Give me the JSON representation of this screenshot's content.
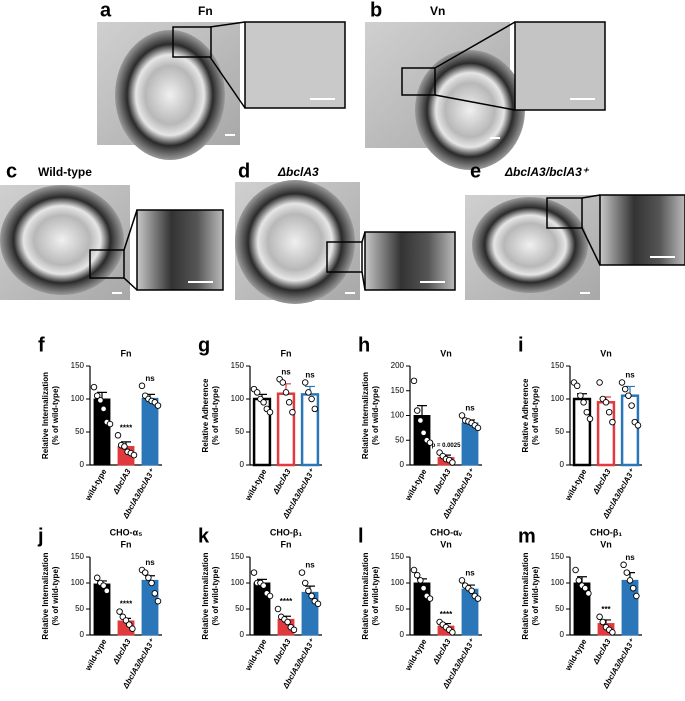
{
  "panels": [
    {
      "letter": "a",
      "label": "Fn"
    },
    {
      "letter": "b",
      "label": "Vn"
    },
    {
      "letter": "c",
      "label": "Wild-type"
    },
    {
      "letter": "d",
      "label": "ΔbclA3"
    },
    {
      "letter": "e",
      "label": "ΔbclA3/bclA3⁺"
    }
  ],
  "chart_data": [
    {
      "type": "bar",
      "letter": "f",
      "title": [
        "Fn"
      ],
      "y_label": [
        "Relative Internalization",
        "(% of wild-type)"
      ],
      "categories": [
        "wild-type",
        "ΔbclA3",
        "ΔbclA3/bclA3⁺"
      ],
      "values": [
        100,
        28,
        101
      ],
      "errors": [
        10,
        7,
        6
      ],
      "points": [
        [
          118,
          105,
          98,
          85,
          65,
          62
        ],
        [
          45,
          30,
          28,
          20,
          18,
          15
        ],
        [
          120,
          105,
          100,
          97,
          95,
          90
        ]
      ],
      "annotations": [
        null,
        "****",
        "ns"
      ],
      "colors": [
        "#000000",
        "#e03a3e",
        "#2a76b8"
      ],
      "filled": true,
      "ylim": [
        0,
        150
      ],
      "yticks": [
        0,
        50,
        100,
        150
      ]
    },
    {
      "type": "bar",
      "letter": "g",
      "title": [
        "Fn"
      ],
      "y_label": [
        "Relative Adherence",
        "(% of wild-type)"
      ],
      "categories": [
        "wild-type",
        "ΔbclA3",
        "ΔbclA3/bclA3⁺"
      ],
      "values": [
        100,
        108,
        107
      ],
      "errors": [
        7,
        15,
        12
      ],
      "points": [
        [
          115,
          110,
          100,
          95,
          85,
          80
        ],
        [
          130,
          125,
          110,
          95,
          80
        ],
        [
          125,
          110,
          100,
          85
        ]
      ],
      "annotations": [
        null,
        "ns",
        "ns"
      ],
      "colors": [
        "#000000",
        "#e03a3e",
        "#2a76b8"
      ],
      "filled": false,
      "ylim": [
        0,
        150
      ],
      "yticks": [
        0,
        50,
        100,
        150
      ]
    },
    {
      "type": "bar",
      "letter": "h",
      "title": [
        "Vn"
      ],
      "y_label": [
        "Relative Internalization",
        "(% of wild-type)"
      ],
      "categories": [
        "wild-type",
        "ΔbclA3",
        "ΔbclA3/bclA3⁺"
      ],
      "values": [
        100,
        15,
        85
      ],
      "errors": [
        20,
        5,
        6
      ],
      "points": [
        [
          170,
          110,
          90,
          65,
          50,
          45
        ],
        [
          25,
          18,
          12,
          10,
          5
        ],
        [
          100,
          90,
          88,
          85,
          80,
          75
        ]
      ],
      "annotations": [
        null,
        "p = 0.0025",
        "ns"
      ],
      "colors": [
        "#000000",
        "#e03a3e",
        "#2a76b8"
      ],
      "filled": true,
      "ylim": [
        0,
        200
      ],
      "yticks": [
        0,
        50,
        100,
        150,
        200
      ]
    },
    {
      "type": "bar",
      "letter": "i",
      "title": [
        "Vn"
      ],
      "y_label": [
        "Relative Adherence",
        "(% of wild-type)"
      ],
      "categories": [
        "wild-type",
        "ΔbclA3",
        "ΔbclA3/bclA3⁺"
      ],
      "values": [
        100,
        95,
        105
      ],
      "errors": [
        8,
        8,
        14
      ],
      "points": [
        [
          125,
          120,
          105,
          95,
          80,
          70
        ],
        [
          125,
          100,
          95,
          80,
          65
        ],
        [
          125,
          115,
          105,
          90,
          65,
          60
        ]
      ],
      "annotations": [
        null,
        null,
        "ns"
      ],
      "colors": [
        "#000000",
        "#e03a3e",
        "#2a76b8"
      ],
      "filled": false,
      "ylim": [
        0,
        150
      ],
      "yticks": [
        0,
        50,
        100,
        150
      ]
    },
    {
      "type": "bar",
      "letter": "j",
      "title": [
        "CHO-α₅",
        "Fn"
      ],
      "y_label": [
        "Relative Internalization",
        "(% of wild-type)"
      ],
      "categories": [
        "wild-type",
        "ΔbclA3",
        "ΔbclA3/bclA3⁺"
      ],
      "values": [
        98,
        27,
        105
      ],
      "errors": [
        6,
        5,
        9
      ],
      "points": [
        [
          110,
          100,
          95,
          85
        ],
        [
          45,
          35,
          28,
          20,
          12
        ],
        [
          125,
          120,
          110,
          100,
          80,
          65
        ]
      ],
      "annotations": [
        null,
        "****",
        "ns"
      ],
      "colors": [
        "#000000",
        "#e03a3e",
        "#2a76b8"
      ],
      "filled": true,
      "ylim": [
        0,
        150
      ],
      "yticks": [
        0,
        50,
        100,
        150
      ]
    },
    {
      "type": "bar",
      "letter": "k",
      "title": [
        "CHO-β₁",
        "Fn"
      ],
      "y_label": [
        "Relative Internalization",
        "(% of wild-type)"
      ],
      "categories": [
        "wild-type",
        "ΔbclA3",
        "ΔbclA3/bclA3⁺"
      ],
      "values": [
        100,
        30,
        82
      ],
      "errors": [
        7,
        6,
        12
      ],
      "points": [
        [
          120,
          100,
          100,
          95,
          80,
          75
        ],
        [
          50,
          35,
          30,
          25,
          15,
          10
        ],
        [
          120,
          100,
          85,
          75,
          65,
          60
        ]
      ],
      "annotations": [
        null,
        "****",
        "ns"
      ],
      "colors": [
        "#000000",
        "#e03a3e",
        "#2a76b8"
      ],
      "filled": true,
      "ylim": [
        0,
        150
      ],
      "yticks": [
        0,
        50,
        100,
        150
      ]
    },
    {
      "type": "bar",
      "letter": "l",
      "title": [
        "CHO-αᵥ",
        "Vn"
      ],
      "y_label": [
        "Relative Internalization",
        "(% of wild-type)"
      ],
      "categories": [
        "wild-type",
        "ΔbclA3",
        "ΔbclA3/bclA3⁺"
      ],
      "values": [
        100,
        17,
        88
      ],
      "errors": [
        8,
        5,
        8
      ],
      "points": [
        [
          125,
          115,
          105,
          90,
          75,
          70
        ],
        [
          25,
          20,
          15,
          10,
          5
        ],
        [
          105,
          95,
          90,
          85,
          75,
          70
        ]
      ],
      "annotations": [
        null,
        "****",
        "ns"
      ],
      "colors": [
        "#000000",
        "#e03a3e",
        "#2a76b8"
      ],
      "filled": true,
      "ylim": [
        0,
        150
      ],
      "yticks": [
        0,
        50,
        100,
        150
      ]
    },
    {
      "type": "bar",
      "letter": "m",
      "title": [
        "CHO-β₁",
        "Vn"
      ],
      "y_label": [
        "Relative Internalization",
        "(% of wild-type)"
      ],
      "categories": [
        "wild-type",
        "ΔbclA3",
        "ΔbclA3/bclA3⁺"
      ],
      "values": [
        100,
        22,
        105
      ],
      "errors": [
        12,
        7,
        15
      ],
      "points": [
        [
          125,
          105,
          95,
          90,
          80
        ],
        [
          35,
          25,
          15,
          10,
          5
        ],
        [
          135,
          120,
          105,
          90,
          75
        ]
      ],
      "annotations": [
        null,
        "***",
        "ns"
      ],
      "colors": [
        "#000000",
        "#e03a3e",
        "#2a76b8"
      ],
      "filled": true,
      "ylim": [
        0,
        150
      ],
      "yticks": [
        0,
        50,
        100,
        150
      ]
    }
  ]
}
